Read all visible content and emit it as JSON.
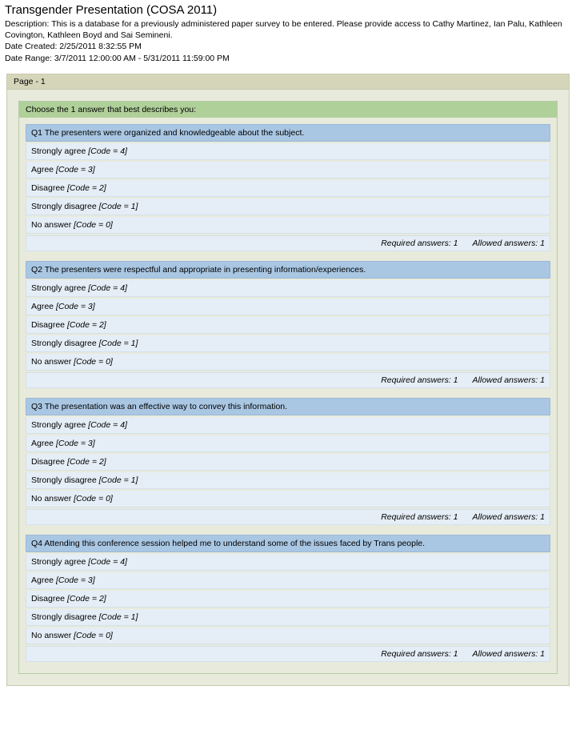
{
  "header": {
    "title": "Transgender Presentation (COSA 2011)",
    "description_label": "Description:",
    "description_text": "This is a database for a previously administered paper survey to be entered. Please provide access to Cathy Martinez, Ian Palu, Kathleen Covington, Kathleen Boyd and Sai Semineni.",
    "date_created_label": "Date Created:",
    "date_created_value": "2/25/2011 8:32:55 PM",
    "date_range_label": "Date Range:",
    "date_range_value": "3/7/2011 12:00:00 AM - 5/31/2011 11:59:00 PM"
  },
  "page_label": "Page - 1",
  "section_title": "Choose the 1 answer that best describes you:",
  "answer_scale": [
    {
      "label": "Strongly agree",
      "code": "[Code = 4]"
    },
    {
      "label": "Agree",
      "code": "[Code = 3]"
    },
    {
      "label": "Disagree",
      "code": "[Code = 2]"
    },
    {
      "label": "Strongly disagree",
      "code": "[Code = 1]"
    },
    {
      "label": "No answer",
      "code": "[Code = 0]"
    }
  ],
  "footer": {
    "required": "Required answers: 1",
    "allowed": "Allowed answers: 1"
  },
  "questions": [
    {
      "id": "Q1",
      "text": "The presenters were organized and knowledgeable about the subject."
    },
    {
      "id": "Q2",
      "text": "The presenters were respectful and appropriate in presenting information/experiences."
    },
    {
      "id": "Q3",
      "text": "The presentation was an effective way to convey this information."
    },
    {
      "id": "Q4",
      "text": "Attending this conference session helped me to understand some of the issues faced by Trans people."
    }
  ]
}
